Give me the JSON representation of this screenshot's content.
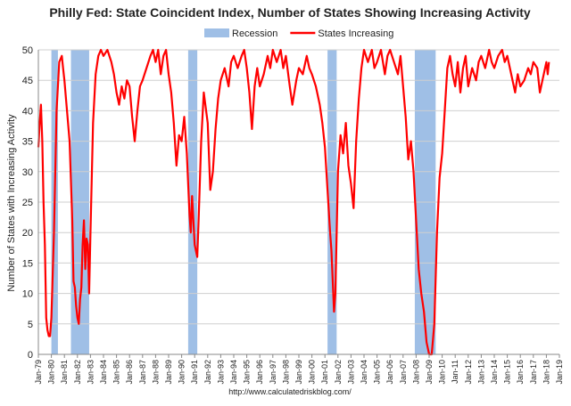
{
  "chart_data": {
    "type": "line",
    "title": "Philly Fed: State Coincident Index, Number of States Showing Increasing Activity",
    "ylabel": "Number of States with Increasing Activity",
    "xlabel": "",
    "source": "http://www.calculatedriskblog.com/",
    "ylim": [
      0,
      50
    ],
    "yticks": [
      0,
      5,
      10,
      15,
      20,
      25,
      30,
      35,
      40,
      45,
      50
    ],
    "xlim": [
      1979,
      2019
    ],
    "xticks": [
      "Jan-79",
      "Jan-80",
      "Jan-81",
      "Jan-82",
      "Jan-83",
      "Jan-84",
      "Jan-85",
      "Jan-86",
      "Jan-87",
      "Jan-88",
      "Jan-89",
      "Jan-90",
      "Jan-91",
      "Jan-92",
      "Jan-93",
      "Jan-94",
      "Jan-95",
      "Jan-96",
      "Jan-97",
      "Jan-98",
      "Jan-99",
      "Jan-00",
      "Jan-01",
      "Jan-02",
      "Jan-03",
      "Jan-04",
      "Jan-05",
      "Jan-06",
      "Jan-07",
      "Jan-08",
      "Jan-09",
      "Jan-10",
      "Jan-11",
      "Jan-12",
      "Jan-13",
      "Jan-14",
      "Jan-15",
      "Jan-16",
      "Jan-17",
      "Jan-18",
      "Jan-19"
    ],
    "grid": "horizontal",
    "legend": {
      "placement": "top-center",
      "items": [
        {
          "label": "Recession",
          "color": "#9fbfe6",
          "kind": "band"
        },
        {
          "label": "States Increasing",
          "color": "#ff0000",
          "kind": "line"
        }
      ]
    },
    "recessions": [
      {
        "start": 1980.0,
        "end": 1980.5
      },
      {
        "start": 1981.5,
        "end": 1982.9
      },
      {
        "start": 1990.5,
        "end": 1991.2
      },
      {
        "start": 2001.2,
        "end": 2001.9
      },
      {
        "start": 2007.9,
        "end": 2009.5
      }
    ],
    "series": [
      {
        "name": "States Increasing",
        "color": "#ff0000",
        "points": [
          [
            1979.0,
            34
          ],
          [
            1979.1,
            38
          ],
          [
            1979.2,
            41
          ],
          [
            1979.3,
            35
          ],
          [
            1979.4,
            25
          ],
          [
            1979.5,
            18
          ],
          [
            1979.6,
            6
          ],
          [
            1979.7,
            4
          ],
          [
            1979.8,
            3
          ],
          [
            1979.9,
            3
          ],
          [
            1980.0,
            6
          ],
          [
            1980.2,
            20
          ],
          [
            1980.4,
            40
          ],
          [
            1980.6,
            48
          ],
          [
            1980.8,
            49
          ],
          [
            1980.9,
            47
          ],
          [
            1981.0,
            45
          ],
          [
            1981.2,
            40
          ],
          [
            1981.4,
            35
          ],
          [
            1981.6,
            22
          ],
          [
            1981.7,
            12
          ],
          [
            1981.8,
            11
          ],
          [
            1981.9,
            8
          ],
          [
            1982.0,
            6
          ],
          [
            1982.1,
            5
          ],
          [
            1982.2,
            9
          ],
          [
            1982.3,
            11
          ],
          [
            1982.4,
            18
          ],
          [
            1982.5,
            22
          ],
          [
            1982.6,
            14
          ],
          [
            1982.7,
            19
          ],
          [
            1982.8,
            18
          ],
          [
            1982.9,
            10
          ],
          [
            1983.0,
            20
          ],
          [
            1983.2,
            38
          ],
          [
            1983.4,
            46
          ],
          [
            1983.6,
            49
          ],
          [
            1983.8,
            50
          ],
          [
            1984.0,
            49
          ],
          [
            1984.3,
            50
          ],
          [
            1984.6,
            48
          ],
          [
            1984.8,
            46
          ],
          [
            1985.0,
            43
          ],
          [
            1985.2,
            41
          ],
          [
            1985.4,
            44
          ],
          [
            1985.6,
            42
          ],
          [
            1985.8,
            45
          ],
          [
            1986.0,
            44
          ],
          [
            1986.2,
            39
          ],
          [
            1986.4,
            35
          ],
          [
            1986.6,
            40
          ],
          [
            1986.8,
            44
          ],
          [
            1987.0,
            45
          ],
          [
            1987.3,
            47
          ],
          [
            1987.6,
            49
          ],
          [
            1987.8,
            50
          ],
          [
            1988.0,
            48
          ],
          [
            1988.2,
            50
          ],
          [
            1988.4,
            46
          ],
          [
            1988.6,
            49
          ],
          [
            1988.8,
            50
          ],
          [
            1989.0,
            46
          ],
          [
            1989.2,
            43
          ],
          [
            1989.4,
            38
          ],
          [
            1989.6,
            31
          ],
          [
            1989.8,
            36
          ],
          [
            1990.0,
            35
          ],
          [
            1990.2,
            39
          ],
          [
            1990.4,
            33
          ],
          [
            1990.5,
            28
          ],
          [
            1990.6,
            23
          ],
          [
            1990.7,
            20
          ],
          [
            1990.8,
            26
          ],
          [
            1991.0,
            18
          ],
          [
            1991.2,
            16
          ],
          [
            1991.3,
            22
          ],
          [
            1991.5,
            35
          ],
          [
            1991.7,
            43
          ],
          [
            1992.0,
            38
          ],
          [
            1992.2,
            27
          ],
          [
            1992.4,
            30
          ],
          [
            1992.6,
            37
          ],
          [
            1992.8,
            42
          ],
          [
            1993.0,
            45
          ],
          [
            1993.3,
            47
          ],
          [
            1993.6,
            44
          ],
          [
            1993.8,
            48
          ],
          [
            1994.0,
            49
          ],
          [
            1994.3,
            47
          ],
          [
            1994.6,
            49
          ],
          [
            1994.8,
            50
          ],
          [
            1995.0,
            47
          ],
          [
            1995.2,
            43
          ],
          [
            1995.4,
            37
          ],
          [
            1995.6,
            44
          ],
          [
            1995.8,
            47
          ],
          [
            1996.0,
            44
          ],
          [
            1996.3,
            46
          ],
          [
            1996.6,
            49
          ],
          [
            1996.8,
            47
          ],
          [
            1997.0,
            50
          ],
          [
            1997.3,
            48
          ],
          [
            1997.6,
            50
          ],
          [
            1997.8,
            47
          ],
          [
            1998.0,
            49
          ],
          [
            1998.3,
            44
          ],
          [
            1998.5,
            41
          ],
          [
            1998.8,
            45
          ],
          [
            1999.0,
            47
          ],
          [
            1999.3,
            46
          ],
          [
            1999.6,
            49
          ],
          [
            1999.8,
            47
          ],
          [
            2000.0,
            46
          ],
          [
            2000.3,
            44
          ],
          [
            2000.6,
            41
          ],
          [
            2000.8,
            38
          ],
          [
            2001.0,
            34
          ],
          [
            2001.2,
            27
          ],
          [
            2001.4,
            20
          ],
          [
            2001.5,
            17
          ],
          [
            2001.7,
            7
          ],
          [
            2001.8,
            10
          ],
          [
            2002.0,
            30
          ],
          [
            2002.2,
            36
          ],
          [
            2002.4,
            33
          ],
          [
            2002.6,
            38
          ],
          [
            2002.8,
            31
          ],
          [
            2003.0,
            28
          ],
          [
            2003.2,
            24
          ],
          [
            2003.4,
            35
          ],
          [
            2003.6,
            42
          ],
          [
            2003.8,
            47
          ],
          [
            2004.0,
            50
          ],
          [
            2004.3,
            48
          ],
          [
            2004.6,
            50
          ],
          [
            2004.8,
            47
          ],
          [
            2005.0,
            48
          ],
          [
            2005.3,
            50
          ],
          [
            2005.6,
            46
          ],
          [
            2005.8,
            49
          ],
          [
            2006.0,
            50
          ],
          [
            2006.3,
            48
          ],
          [
            2006.6,
            46
          ],
          [
            2006.8,
            49
          ],
          [
            2007.0,
            44
          ],
          [
            2007.2,
            39
          ],
          [
            2007.4,
            32
          ],
          [
            2007.6,
            35
          ],
          [
            2007.8,
            30
          ],
          [
            2008.0,
            22
          ],
          [
            2008.2,
            14
          ],
          [
            2008.4,
            10
          ],
          [
            2008.6,
            7
          ],
          [
            2008.8,
            2
          ],
          [
            2009.0,
            0
          ],
          [
            2009.2,
            0
          ],
          [
            2009.4,
            5
          ],
          [
            2009.6,
            20
          ],
          [
            2009.8,
            29
          ],
          [
            2010.0,
            33
          ],
          [
            2010.2,
            40
          ],
          [
            2010.4,
            47
          ],
          [
            2010.6,
            49
          ],
          [
            2010.8,
            46
          ],
          [
            2011.0,
            44
          ],
          [
            2011.2,
            48
          ],
          [
            2011.4,
            43
          ],
          [
            2011.6,
            47
          ],
          [
            2011.8,
            49
          ],
          [
            2012.0,
            44
          ],
          [
            2012.3,
            47
          ],
          [
            2012.6,
            45
          ],
          [
            2012.8,
            48
          ],
          [
            2013.0,
            49
          ],
          [
            2013.3,
            47
          ],
          [
            2013.6,
            50
          ],
          [
            2013.8,
            48
          ],
          [
            2014.0,
            47
          ],
          [
            2014.3,
            49
          ],
          [
            2014.6,
            50
          ],
          [
            2014.8,
            48
          ],
          [
            2015.0,
            49
          ],
          [
            2015.3,
            46
          ],
          [
            2015.6,
            43
          ],
          [
            2015.8,
            46
          ],
          [
            2016.0,
            44
          ],
          [
            2016.3,
            45
          ],
          [
            2016.6,
            47
          ],
          [
            2016.8,
            46
          ],
          [
            2017.0,
            48
          ],
          [
            2017.3,
            47
          ],
          [
            2017.5,
            43
          ],
          [
            2017.7,
            45
          ],
          [
            2018.0,
            48
          ],
          [
            2018.1,
            46
          ],
          [
            2018.2,
            48
          ]
        ]
      }
    ]
  }
}
